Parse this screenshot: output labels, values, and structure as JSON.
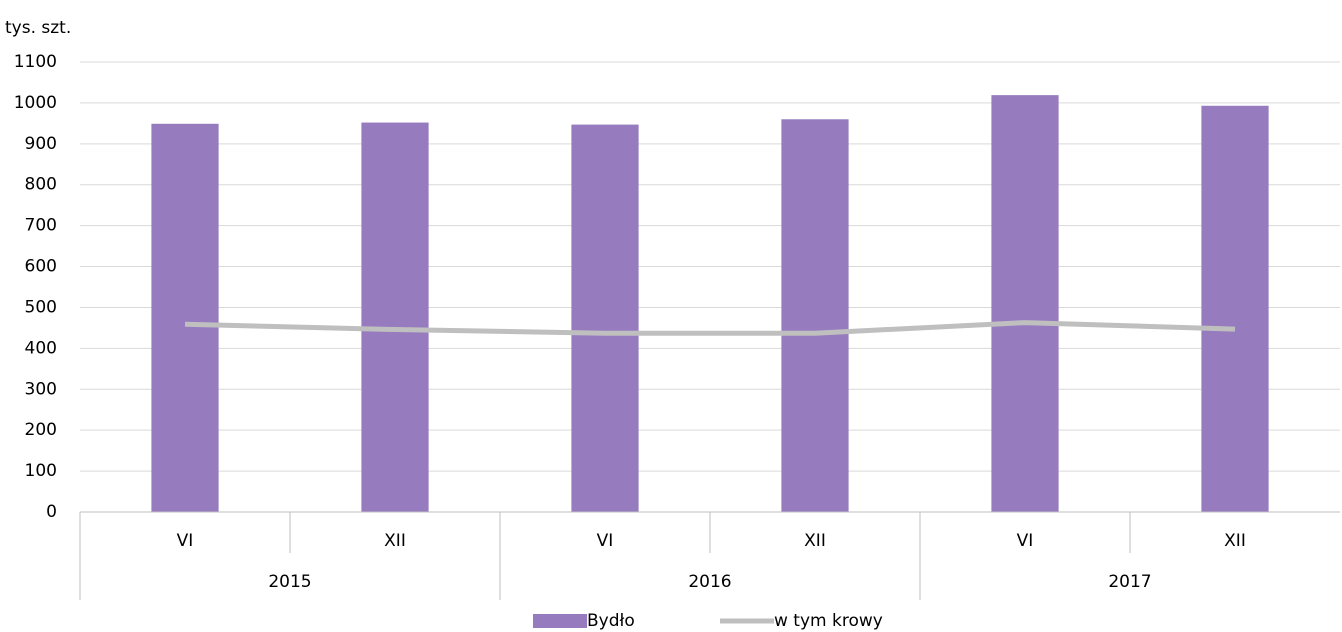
{
  "chart_data": {
    "type": "bar-line",
    "y_label": "tys. szt.",
    "categories": [
      "VI",
      "XII",
      "VI",
      "XII",
      "VI",
      "XII"
    ],
    "groups": [
      "2015",
      "2016",
      "2017"
    ],
    "series": [
      {
        "name": "Bydło",
        "type": "bar",
        "color": "#967bbf",
        "values": [
          949,
          952,
          947,
          960,
          1019,
          993
        ]
      },
      {
        "name": "w tym krowy",
        "type": "line",
        "color": "#bfbfbf",
        "values": [
          459,
          446,
          437,
          437,
          463,
          447
        ]
      }
    ],
    "ylim": [
      0,
      1100
    ],
    "yticks": [
      0,
      100,
      200,
      300,
      400,
      500,
      600,
      700,
      800,
      900,
      1000,
      1100
    ],
    "grid": true,
    "legend": "bottom"
  }
}
